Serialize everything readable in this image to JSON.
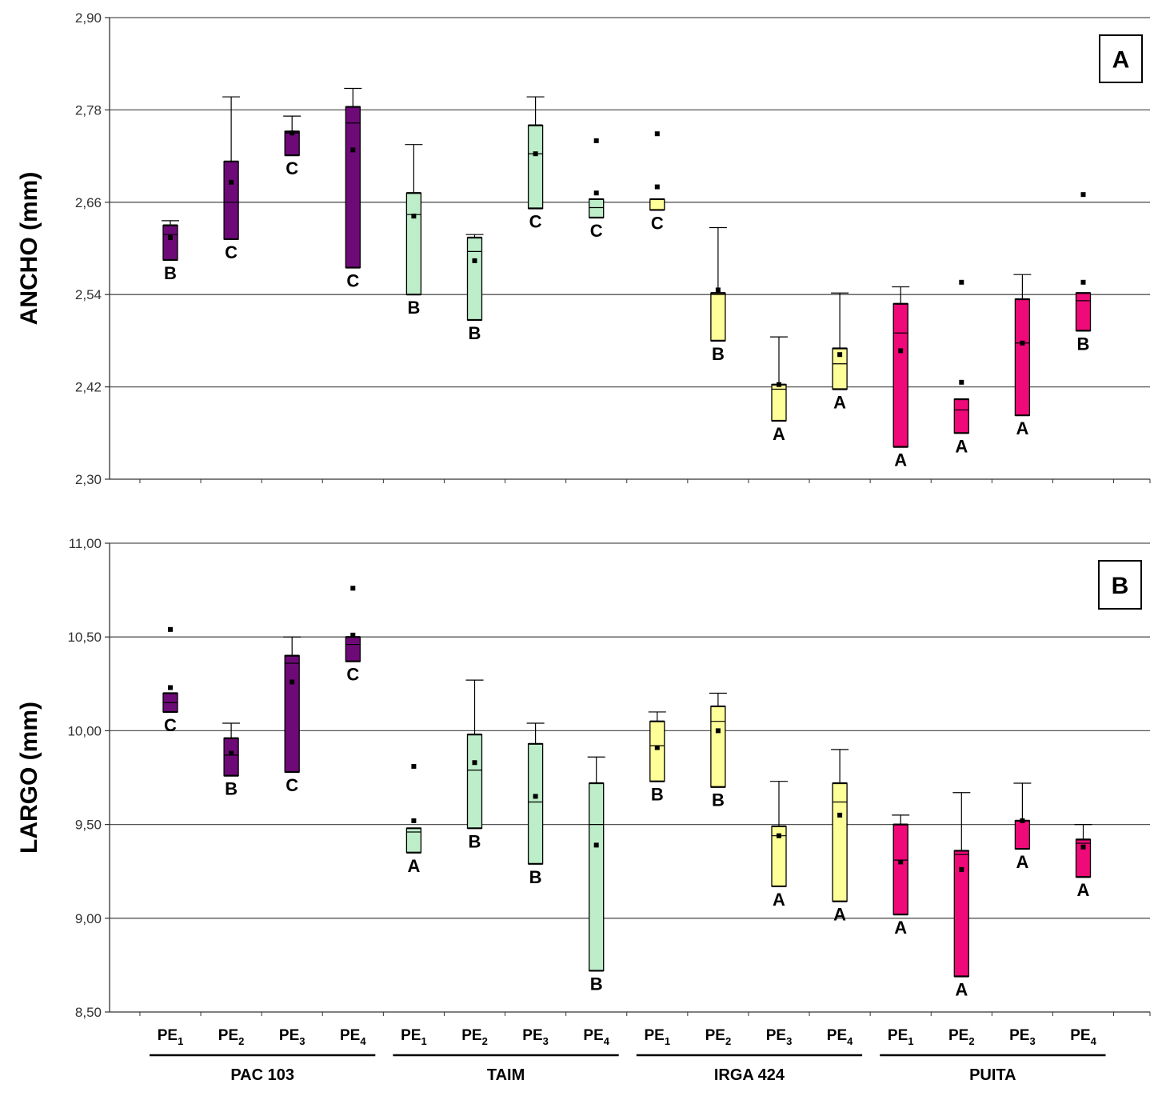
{
  "colors": {
    "PAC 103": "#6e0a78",
    "TAIM": "#bdeec9",
    "IRGA 424": "#ffff99",
    "PUITA": "#ee0a78"
  },
  "x_labels": [
    {
      "base": "PE",
      "sub": "1"
    },
    {
      "base": "PE",
      "sub": "2"
    },
    {
      "base": "PE",
      "sub": "3"
    },
    {
      "base": "PE",
      "sub": "4"
    },
    {
      "base": "PE",
      "sub": "1"
    },
    {
      "base": "PE",
      "sub": "2"
    },
    {
      "base": "PE",
      "sub": "3"
    },
    {
      "base": "PE",
      "sub": "4"
    },
    {
      "base": "PE",
      "sub": "1"
    },
    {
      "base": "PE",
      "sub": "2"
    },
    {
      "base": "PE",
      "sub": "3"
    },
    {
      "base": "PE",
      "sub": "4"
    },
    {
      "base": "PE",
      "sub": "1"
    },
    {
      "base": "PE",
      "sub": "2"
    },
    {
      "base": "PE",
      "sub": "3"
    },
    {
      "base": "PE",
      "sub": "4"
    }
  ],
  "groups": [
    "PAC 103",
    "TAIM",
    "IRGA 424",
    "PUITA"
  ],
  "chart_data": [
    {
      "type": "boxplot",
      "panel": "A",
      "ylabel": "ANCHO (mm)",
      "ylim": [
        2.3,
        2.9
      ],
      "yticks": [
        "2,30",
        "2,42",
        "2,54",
        "2,66",
        "2,78",
        "2,90"
      ],
      "ytick_values": [
        2.3,
        2.42,
        2.54,
        2.66,
        2.78,
        2.9
      ],
      "grid": true,
      "boxes": [
        {
          "group": "PAC 103",
          "pe": "PE1",
          "q1": 2.585,
          "median": 2.618,
          "q3": 2.63,
          "whisker_low": 2.585,
          "whisker_high": 2.636,
          "mean": 2.614,
          "outliers": [],
          "letter": "B"
        },
        {
          "group": "PAC 103",
          "pe": "PE2",
          "q1": 2.612,
          "median": 2.66,
          "q3": 2.713,
          "whisker_low": 2.612,
          "whisker_high": 2.797,
          "mean": 2.686,
          "outliers": [],
          "letter": "C"
        },
        {
          "group": "PAC 103",
          "pe": "PE3",
          "q1": 2.721,
          "median": 2.75,
          "q3": 2.752,
          "whisker_low": 2.721,
          "whisker_high": 2.772,
          "mean": 2.75,
          "outliers": [],
          "letter": "C"
        },
        {
          "group": "PAC 103",
          "pe": "PE4",
          "q1": 2.575,
          "median": 2.763,
          "q3": 2.784,
          "whisker_low": 2.575,
          "whisker_high": 2.808,
          "mean": 2.728,
          "outliers": [],
          "letter": "C"
        },
        {
          "group": "TAIM",
          "pe": "PE1",
          "q1": 2.54,
          "median": 2.644,
          "q3": 2.672,
          "whisker_low": 2.54,
          "whisker_high": 2.735,
          "mean": 2.642,
          "outliers": [],
          "letter": "B"
        },
        {
          "group": "TAIM",
          "pe": "PE2",
          "q1": 2.507,
          "median": 2.596,
          "q3": 2.614,
          "whisker_low": 2.507,
          "whisker_high": 2.618,
          "mean": 2.584,
          "outliers": [],
          "letter": "B"
        },
        {
          "group": "TAIM",
          "pe": "PE3",
          "q1": 2.652,
          "median": 2.723,
          "q3": 2.76,
          "whisker_low": 2.652,
          "whisker_high": 2.797,
          "mean": 2.723,
          "outliers": [],
          "letter": "C"
        },
        {
          "group": "TAIM",
          "pe": "PE4",
          "q1": 2.64,
          "median": 2.653,
          "q3": 2.664,
          "whisker_low": 2.64,
          "whisker_high": 2.664,
          "mean": 2.672,
          "outliers": [
            2.74
          ],
          "letter": "C"
        },
        {
          "group": "IRGA 424",
          "pe": "PE1",
          "q1": 2.65,
          "median": 2.664,
          "q3": 2.664,
          "whisker_low": 2.65,
          "whisker_high": 2.664,
          "mean": 2.68,
          "outliers": [
            2.749
          ],
          "letter": "C"
        },
        {
          "group": "IRGA 424",
          "pe": "PE2",
          "q1": 2.48,
          "median": 2.54,
          "q3": 2.542,
          "whisker_low": 2.48,
          "whisker_high": 2.627,
          "mean": 2.546,
          "outliers": [],
          "letter": "B"
        },
        {
          "group": "IRGA 424",
          "pe": "PE3",
          "q1": 2.376,
          "median": 2.417,
          "q3": 2.423,
          "whisker_low": 2.376,
          "whisker_high": 2.485,
          "mean": 2.423,
          "outliers": [],
          "letter": "A"
        },
        {
          "group": "IRGA 424",
          "pe": "PE4",
          "q1": 2.417,
          "median": 2.45,
          "q3": 2.47,
          "whisker_low": 2.417,
          "whisker_high": 2.542,
          "mean": 2.462,
          "outliers": [],
          "letter": "A"
        },
        {
          "group": "PUITA",
          "pe": "PE1",
          "q1": 2.342,
          "median": 2.49,
          "q3": 2.528,
          "whisker_low": 2.342,
          "whisker_high": 2.55,
          "mean": 2.467,
          "outliers": [],
          "letter": "A"
        },
        {
          "group": "PUITA",
          "pe": "PE2",
          "q1": 2.36,
          "median": 2.39,
          "q3": 2.404,
          "whisker_low": 2.36,
          "whisker_high": 2.404,
          "mean": 2.426,
          "outliers": [
            2.556
          ],
          "letter": "A"
        },
        {
          "group": "PUITA",
          "pe": "PE3",
          "q1": 2.383,
          "median": 2.477,
          "q3": 2.534,
          "whisker_low": 2.383,
          "whisker_high": 2.566,
          "mean": 2.477,
          "outliers": [],
          "letter": "A"
        },
        {
          "group": "PUITA",
          "pe": "PE4",
          "q1": 2.493,
          "median": 2.532,
          "q3": 2.542,
          "whisker_low": 2.493,
          "whisker_high": 2.542,
          "mean": 2.556,
          "outliers": [
            2.67
          ],
          "letter": "B"
        }
      ]
    },
    {
      "type": "boxplot",
      "panel": "B",
      "ylabel": "LARGO (mm)",
      "ylim": [
        8.5,
        11.0
      ],
      "yticks": [
        "8,50",
        "9,00",
        "9,50",
        "10,00",
        "10,50",
        "11,00"
      ],
      "ytick_values": [
        8.5,
        9.0,
        9.5,
        10.0,
        10.5,
        11.0
      ],
      "grid": true,
      "boxes": [
        {
          "group": "PAC 103",
          "pe": "PE1",
          "q1": 10.1,
          "median": 10.15,
          "q3": 10.2,
          "whisker_low": 10.1,
          "whisker_high": 10.2,
          "mean": 10.23,
          "outliers": [
            10.54
          ],
          "letter": "C"
        },
        {
          "group": "PAC 103",
          "pe": "PE2",
          "q1": 9.76,
          "median": 9.87,
          "q3": 9.96,
          "whisker_low": 9.76,
          "whisker_high": 10.04,
          "mean": 9.88,
          "outliers": [],
          "letter": "B"
        },
        {
          "group": "PAC 103",
          "pe": "PE3",
          "q1": 9.78,
          "median": 10.36,
          "q3": 10.4,
          "whisker_low": 9.78,
          "whisker_high": 10.5,
          "mean": 10.26,
          "outliers": [],
          "letter": "C"
        },
        {
          "group": "PAC 103",
          "pe": "PE4",
          "q1": 10.37,
          "median": 10.46,
          "q3": 10.5,
          "whisker_low": 10.37,
          "whisker_high": 10.5,
          "mean": 10.51,
          "outliers": [
            10.76
          ],
          "letter": "C"
        },
        {
          "group": "TAIM",
          "pe": "PE1",
          "q1": 9.35,
          "median": 9.46,
          "q3": 9.48,
          "whisker_low": 9.35,
          "whisker_high": 9.48,
          "mean": 9.52,
          "outliers": [
            9.81
          ],
          "letter": "A"
        },
        {
          "group": "TAIM",
          "pe": "PE2",
          "q1": 9.48,
          "median": 9.79,
          "q3": 9.98,
          "whisker_low": 9.48,
          "whisker_high": 10.27,
          "mean": 9.83,
          "outliers": [],
          "letter": "B"
        },
        {
          "group": "TAIM",
          "pe": "PE3",
          "q1": 9.29,
          "median": 9.62,
          "q3": 9.93,
          "whisker_low": 9.29,
          "whisker_high": 10.04,
          "mean": 9.65,
          "outliers": [],
          "letter": "B"
        },
        {
          "group": "TAIM",
          "pe": "PE4",
          "q1": 8.72,
          "median": 9.5,
          "q3": 9.72,
          "whisker_low": 8.72,
          "whisker_high": 9.86,
          "mean": 9.39,
          "outliers": [],
          "letter": "B"
        },
        {
          "group": "IRGA 424",
          "pe": "PE1",
          "q1": 9.73,
          "median": 9.92,
          "q3": 10.05,
          "whisker_low": 9.73,
          "whisker_high": 10.1,
          "mean": 9.91,
          "outliers": [],
          "letter": "B"
        },
        {
          "group": "IRGA 424",
          "pe": "PE2",
          "q1": 9.7,
          "median": 10.05,
          "q3": 10.13,
          "whisker_low": 9.7,
          "whisker_high": 10.2,
          "mean": 10.0,
          "outliers": [],
          "letter": "B"
        },
        {
          "group": "IRGA 424",
          "pe": "PE3",
          "q1": 9.17,
          "median": 9.44,
          "q3": 9.49,
          "whisker_low": 9.17,
          "whisker_high": 9.73,
          "mean": 9.44,
          "outliers": [],
          "letter": "A"
        },
        {
          "group": "IRGA 424",
          "pe": "PE4",
          "q1": 9.09,
          "median": 9.62,
          "q3": 9.72,
          "whisker_low": 9.09,
          "whisker_high": 9.9,
          "mean": 9.55,
          "outliers": [],
          "letter": "A"
        },
        {
          "group": "PUITA",
          "pe": "PE1",
          "q1": 9.02,
          "median": 9.31,
          "q3": 9.5,
          "whisker_low": 9.02,
          "whisker_high": 9.55,
          "mean": 9.3,
          "outliers": [],
          "letter": "A"
        },
        {
          "group": "PUITA",
          "pe": "PE2",
          "q1": 8.69,
          "median": 9.34,
          "q3": 9.36,
          "whisker_low": 8.69,
          "whisker_high": 9.67,
          "mean": 9.26,
          "outliers": [],
          "letter": "A"
        },
        {
          "group": "PUITA",
          "pe": "PE3",
          "q1": 9.37,
          "median": 9.52,
          "q3": 9.52,
          "whisker_low": 9.37,
          "whisker_high": 9.72,
          "mean": 9.52,
          "outliers": [],
          "letter": "A"
        },
        {
          "group": "PUITA",
          "pe": "PE4",
          "q1": 9.22,
          "median": 9.4,
          "q3": 9.42,
          "whisker_low": 9.22,
          "whisker_high": 9.5,
          "mean": 9.38,
          "outliers": [],
          "letter": "A"
        }
      ]
    }
  ]
}
